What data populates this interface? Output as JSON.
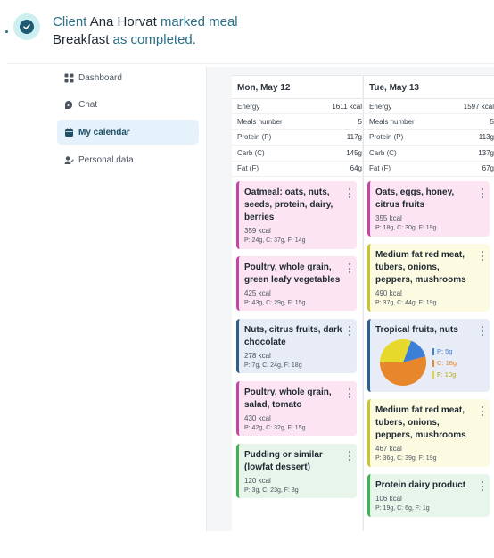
{
  "notification": {
    "word_client": "Client",
    "client_name": "Ana Horvat",
    "mid_text": "marked meal",
    "meal_name": "Breakfast",
    "end_text": "as completed.",
    "icon": "check-circle-icon"
  },
  "sidebar": {
    "items": [
      {
        "label": "Dashboard",
        "icon": "grid-icon",
        "active": false
      },
      {
        "label": "Chat",
        "icon": "chat-icon",
        "active": false
      },
      {
        "label": "My calendar",
        "icon": "calendar-icon",
        "active": true
      },
      {
        "label": "Personal data",
        "icon": "user-edit-icon",
        "active": false
      }
    ]
  },
  "days": [
    {
      "title": "Mon, May 12",
      "stats": [
        {
          "label": "Energy",
          "value": "1611 kcal"
        },
        {
          "label": "Meals number",
          "value": "5"
        },
        {
          "label": "Protein (P)",
          "value": "117g"
        },
        {
          "label": "Carb (C)",
          "value": "145g"
        },
        {
          "label": "Fat (F)",
          "value": "64g"
        }
      ],
      "meals": [
        {
          "title": "Oatmeal: oats, nuts, seeds, protein, dairy, berries",
          "kcal": "359 kcal",
          "macros": "P: 24g, C: 37g, F: 14g",
          "color": "pink"
        },
        {
          "title": "Poultry, whole grain, green leafy vegetables",
          "kcal": "425 kcal",
          "macros": "P: 43g, C: 29g, F: 15g",
          "color": "pink"
        },
        {
          "title": "Nuts, citrus fruits, dark chocolate",
          "kcal": "278 kcal",
          "macros": "P: 7g, C: 24g, F: 18g",
          "color": "blue"
        },
        {
          "title": "Poultry, whole grain, salad, tomato",
          "kcal": "430 kcal",
          "macros": "P: 42g, C: 32g, F: 15g",
          "color": "pink"
        },
        {
          "title": "Pudding or similar (lowfat dessert)",
          "kcal": "120 kcal",
          "macros": "P: 3g, C: 23g, F: 3g",
          "color": "green"
        }
      ]
    },
    {
      "title": "Tue, May 13",
      "stats": [
        {
          "label": "Energy",
          "value": "1597 kcal"
        },
        {
          "label": "Meals number",
          "value": "5"
        },
        {
          "label": "Protein (P)",
          "value": "113g"
        },
        {
          "label": "Carb (C)",
          "value": "137g"
        },
        {
          "label": "Fat (F)",
          "value": "67g"
        }
      ],
      "meals": [
        {
          "title": "Oats, eggs, honey, citrus fruits",
          "kcal": "355 kcal",
          "macros": "P: 18g, C: 30g, F: 19g",
          "color": "pink"
        },
        {
          "title": "Medium fat red meat, tubers, onions, peppers, mushrooms",
          "kcal": "490 kcal",
          "macros": "P: 37g, C: 44g, F: 19g",
          "color": "yellow"
        },
        {
          "title": "Tropical fruits, nuts",
          "pie": {
            "legend": [
              "P: 5g",
              "C: 18g",
              "F: 10g"
            ],
            "values": [
              5,
              18,
              10
            ],
            "colors": [
              "#3b7fd6",
              "#e8862c",
              "#e6d92b"
            ]
          },
          "color": "blue"
        },
        {
          "title": "Medium fat red meat, tubers, onions, peppers, mushrooms",
          "kcal": "467 kcal",
          "macros": "P: 36g, C: 39g, F: 19g",
          "color": "yellow"
        },
        {
          "title": "Protein dairy product",
          "kcal": "106 kcal",
          "macros": "P: 19g, C: 6g, F: 1g",
          "color": "green"
        }
      ]
    }
  ]
}
